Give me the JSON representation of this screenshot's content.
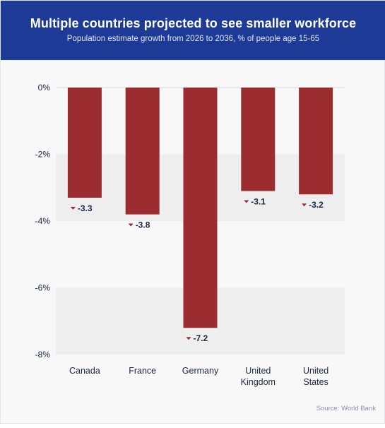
{
  "header": {
    "title": "Multiple countries projected to see smaller workforce",
    "subtitle": "Population estimate growth from 2026 to 2036, % of people age 15-65"
  },
  "source": "Source: World Bank",
  "colors": {
    "header_bg": "#1d3b96",
    "bar": "#9b2c2f",
    "text": "#1a2540",
    "band": "#eeeeef"
  },
  "chart_data": {
    "type": "bar",
    "title": "Multiple countries projected to see smaller workforce",
    "subtitle": "Population estimate growth from 2026 to 2036, % of people age 15-65",
    "categories": [
      [
        "Canada"
      ],
      [
        "France"
      ],
      [
        "Germany"
      ],
      [
        "United",
        "Kingdom"
      ],
      [
        "United",
        "States"
      ]
    ],
    "values": [
      -3.3,
      -3.8,
      -7.2,
      -3.1,
      -3.2
    ],
    "data_labels": [
      "-3.3",
      "-3.8",
      "-7.2",
      "-3.1",
      "-3.2"
    ],
    "ylim": [
      -8,
      0
    ],
    "yticks": [
      0,
      -2,
      -4,
      -6,
      -8
    ],
    "ytick_labels": [
      "0%",
      "-2%",
      "-4%",
      "-6%",
      "-8%"
    ],
    "xlabel": "",
    "ylabel": "",
    "grid": "alternating horizontal bands"
  }
}
